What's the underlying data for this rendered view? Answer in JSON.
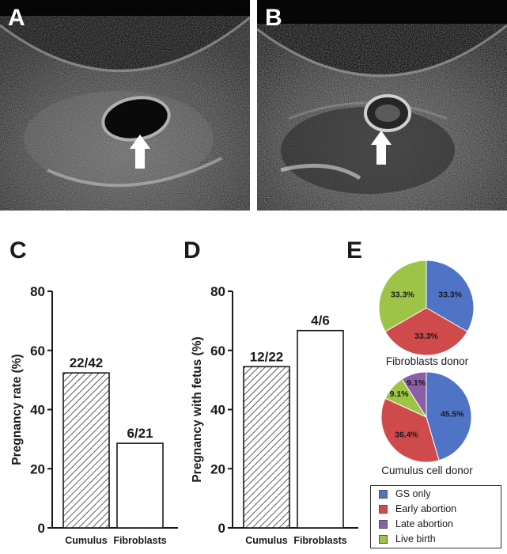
{
  "panels": {
    "a": "A",
    "b": "B",
    "c": "C",
    "d": "D",
    "e": "E"
  },
  "colors": {
    "gs_only": "#4f74c6",
    "early_abortion": "#cf4b4b",
    "late_abortion": "#8a5fa8",
    "live_birth": "#9ec447"
  },
  "chart_data": [
    {
      "type": "bar",
      "panel": "C",
      "categories": [
        "Cumulus",
        "Fibroblasts"
      ],
      "values": [
        52.4,
        28.6
      ],
      "bar_labels": [
        "22/42",
        "6/21"
      ],
      "bar_fill": [
        "hatched",
        "white"
      ],
      "ylabel": "Pregnancy rate (%)",
      "yticks": [
        "0",
        "20",
        "40",
        "60",
        "80"
      ],
      "ylim": [
        0,
        80
      ]
    },
    {
      "type": "bar",
      "panel": "D",
      "categories": [
        "Cumulus",
        "Fibroblasts"
      ],
      "values": [
        54.5,
        66.7
      ],
      "bar_labels": [
        "12/22",
        "4/6"
      ],
      "bar_fill": [
        "hatched",
        "white"
      ],
      "ylabel": "Pregnancy with fetus (%)",
      "yticks": [
        "0",
        "20",
        "40",
        "60",
        "80"
      ],
      "ylim": [
        0,
        80
      ]
    },
    {
      "type": "pie",
      "panel": "E",
      "label": "Fibroblasts donor",
      "slices": [
        {
          "category": "GS only",
          "value": 33.3,
          "text": "33.3%"
        },
        {
          "category": "Early abortion",
          "value": 33.3,
          "text": "33.3%"
        },
        {
          "category": "Live birth",
          "value": 33.3,
          "text": "33.3%"
        }
      ]
    },
    {
      "type": "pie",
      "panel": "E",
      "label": "Cumulus cell donor",
      "slices": [
        {
          "category": "GS only",
          "value": 45.5,
          "text": "45.5%"
        },
        {
          "category": "Early abortion",
          "value": 36.4,
          "text": "36.4%"
        },
        {
          "category": "Live birth",
          "value": 9.1,
          "text": "9.1%"
        },
        {
          "category": "Late abortion",
          "value": 9.1,
          "text": "9.1%"
        }
      ]
    }
  ],
  "legend": {
    "placement": "bottom-right",
    "items": [
      "GS only",
      "Early abortion",
      "Late abortion",
      "Live birth"
    ]
  }
}
